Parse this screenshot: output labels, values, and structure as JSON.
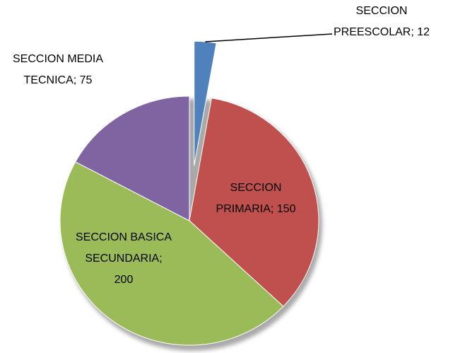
{
  "chart_data": {
    "type": "pie",
    "values": [
      12,
      150,
      200,
      75
    ],
    "value_labels": [
      [
        "SECCION",
        "PREESCOLAR; 12"
      ],
      [
        "SECCION",
        "PRIMARIA; 150"
      ],
      [
        "SECCION BASICA",
        "SECUNDARIA;",
        "200"
      ],
      [
        "SECCION MEDIA",
        "TECNICA; 75"
      ]
    ],
    "colors": [
      "#4f81bd",
      "#c0504d",
      "#9bbb59",
      "#8064a2"
    ]
  }
}
